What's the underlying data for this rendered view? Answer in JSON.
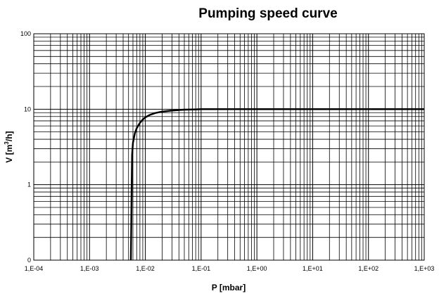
{
  "chart_data": {
    "type": "line",
    "title": "Pumping speed curve",
    "xlabel": "P [mbar]",
    "ylabel_prefix": "V [m",
    "ylabel_sup": "3",
    "ylabel_suffix": "/h]",
    "x_scale": "log",
    "y_scale": "log",
    "xlim": [
      0.0001,
      1000
    ],
    "ylim": [
      0.1,
      100
    ],
    "grid": true,
    "x_tick_values": [
      0.0001,
      0.001,
      0.01,
      0.1,
      1,
      10,
      100,
      1000
    ],
    "x_tick_labels": [
      "1,E-04",
      "1,E-03",
      "1,E-02",
      "1,E-01",
      "1,E+00",
      "1,E+01",
      "1,E+02",
      "1,E+03"
    ],
    "y_tick_values": [
      0.1,
      1,
      10,
      100
    ],
    "y_tick_labels": [
      "0",
      "1",
      "10",
      "100"
    ],
    "series": [
      {
        "name": "Pumping speed",
        "color": "#000000",
        "x": [
          0.0055,
          0.0056,
          0.0057,
          0.0058,
          0.006,
          0.0065,
          0.007,
          0.008,
          0.009,
          0.01,
          0.012,
          0.015,
          0.02,
          0.03,
          0.05,
          0.08,
          0.1,
          1,
          10,
          100,
          1000
        ],
        "y": [
          0.1,
          0.3,
          1.0,
          2.5,
          3.6,
          4.8,
          5.6,
          6.6,
          7.3,
          7.8,
          8.4,
          8.9,
          9.3,
          9.6,
          9.85,
          9.95,
          10,
          10,
          10,
          10,
          10
        ]
      }
    ]
  }
}
